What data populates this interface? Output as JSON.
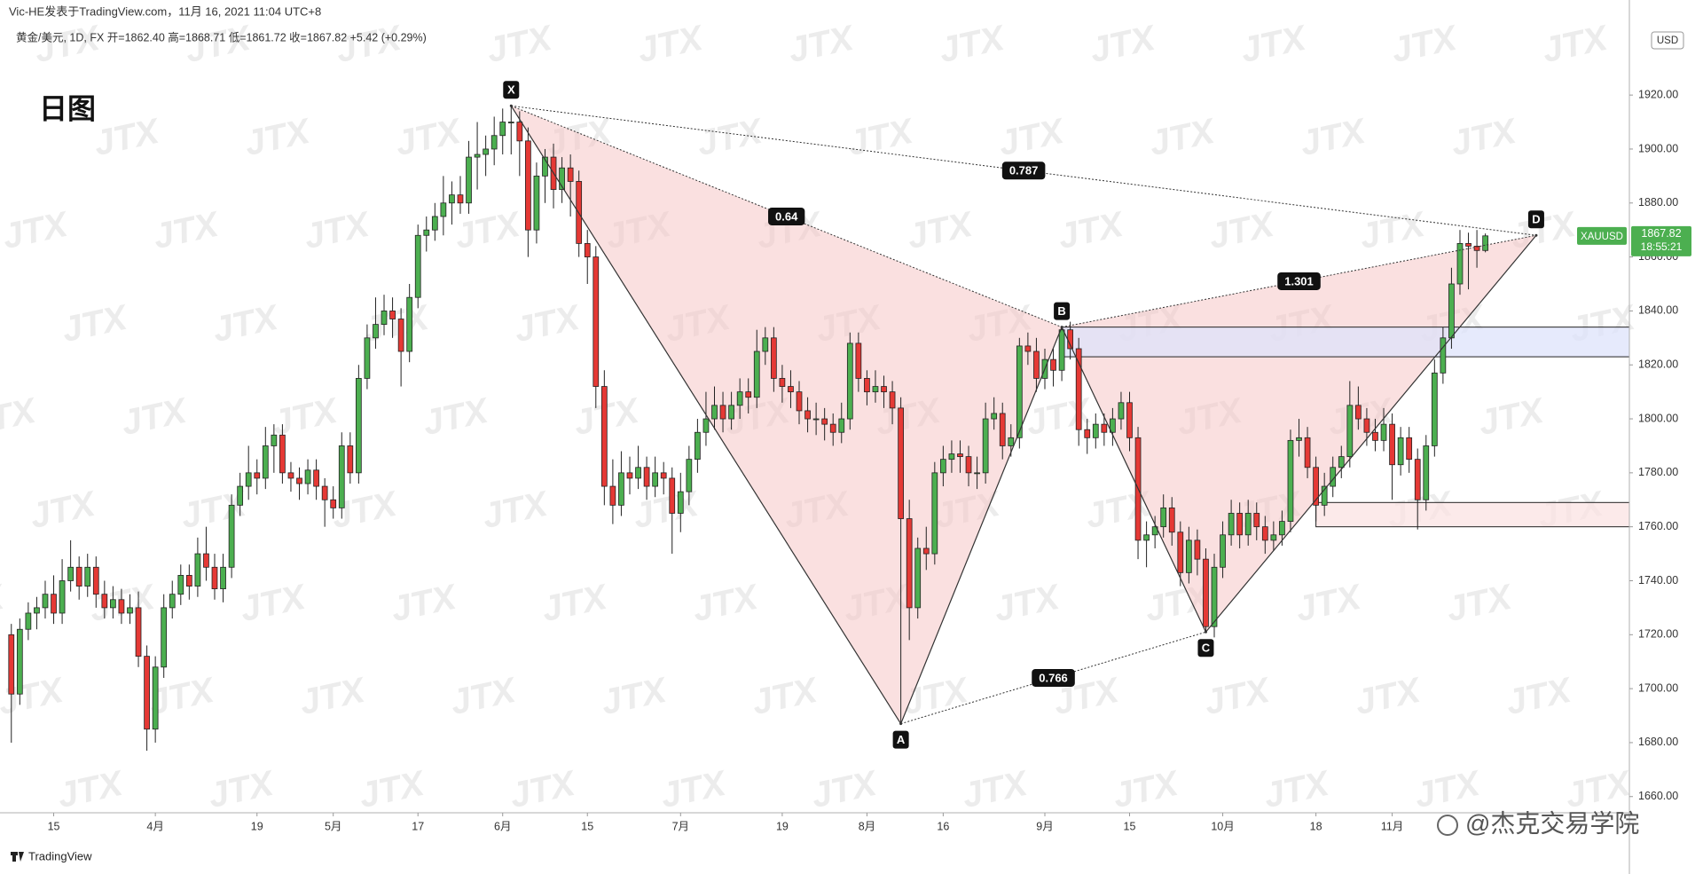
{
  "header": "Vic-HE发表于TradingView.com，11月 16, 2021 11:04 UTC+8",
  "footer": "TradingView",
  "author_watermark": "@杰克交易学院",
  "watermark": "JTX",
  "chart_data": {
    "type": "candlestick",
    "title": "日图",
    "legend": "黄金/美元, 1D, FX  开=1862.40  高=1868.71  低=1861.72  收=1867.82  +5.42 (+0.29%)",
    "currency": "USD",
    "symbol": "XAUUSD",
    "countdown": "18:55:21",
    "up_color": "#4caf50",
    "down_color": "#e53935",
    "xlim": [
      -0.5,
      191
    ],
    "ylim": [
      1654,
      1948
    ],
    "yticks": [
      {
        "value": 1660,
        "label": "1660.00"
      },
      {
        "value": 1680,
        "label": "1680.00"
      },
      {
        "value": 1700,
        "label": "1700.00"
      },
      {
        "value": 1720,
        "label": "1720.00"
      },
      {
        "value": 1740,
        "label": "1740.00"
      },
      {
        "value": 1760,
        "label": "1760.00"
      },
      {
        "value": 1780,
        "label": "1780.00"
      },
      {
        "value": 1800,
        "label": "1800.00"
      },
      {
        "value": 1820,
        "label": "1820.00"
      },
      {
        "value": 1840,
        "label": "1840.00"
      },
      {
        "value": 1860,
        "label": "1860.00"
      },
      {
        "value": 1880,
        "label": "1880.00"
      },
      {
        "value": 1900,
        "label": "1900.00"
      },
      {
        "value": 1920,
        "label": "1920.00"
      }
    ],
    "xticks": [
      {
        "value": 5,
        "label": "15"
      },
      {
        "value": 17,
        "label": "4月"
      },
      {
        "value": 29,
        "label": "19"
      },
      {
        "value": 38,
        "label": "5月"
      },
      {
        "value": 48,
        "label": "17"
      },
      {
        "value": 58,
        "label": "6月"
      },
      {
        "value": 68,
        "label": "15"
      },
      {
        "value": 79,
        "label": "7月"
      },
      {
        "value": 91,
        "label": "19"
      },
      {
        "value": 101,
        "label": "8月"
      },
      {
        "value": 110,
        "label": "16"
      },
      {
        "value": 122,
        "label": "9月"
      },
      {
        "value": 132,
        "label": "15"
      },
      {
        "value": 143,
        "label": "10月"
      },
      {
        "value": 154,
        "label": "18"
      },
      {
        "value": 163,
        "label": "11月"
      }
    ],
    "candles": [
      [
        1720,
        1724,
        1680,
        1698
      ],
      [
        1698,
        1726,
        1694,
        1722
      ],
      [
        1722,
        1732,
        1718,
        1728
      ],
      [
        1728,
        1734,
        1722,
        1730
      ],
      [
        1730,
        1740,
        1726,
        1735
      ],
      [
        1735,
        1742,
        1724,
        1728
      ],
      [
        1728,
        1748,
        1724,
        1740
      ],
      [
        1740,
        1755,
        1736,
        1745
      ],
      [
        1745,
        1749,
        1733,
        1738
      ],
      [
        1738,
        1750,
        1734,
        1745
      ],
      [
        1745,
        1749,
        1730,
        1735
      ],
      [
        1735,
        1740,
        1726,
        1730
      ],
      [
        1730,
        1738,
        1726,
        1733
      ],
      [
        1733,
        1737,
        1724,
        1728
      ],
      [
        1728,
        1735,
        1724,
        1730
      ],
      [
        1730,
        1736,
        1708,
        1712
      ],
      [
        1712,
        1716,
        1677,
        1685
      ],
      [
        1685,
        1712,
        1680,
        1708
      ],
      [
        1708,
        1735,
        1704,
        1730
      ],
      [
        1730,
        1740,
        1726,
        1735
      ],
      [
        1735,
        1746,
        1731,
        1742
      ],
      [
        1742,
        1746,
        1733,
        1738
      ],
      [
        1738,
        1756,
        1734,
        1750
      ],
      [
        1750,
        1760,
        1740,
        1745
      ],
      [
        1745,
        1750,
        1733,
        1737
      ],
      [
        1737,
        1750,
        1732,
        1745
      ],
      [
        1745,
        1772,
        1741,
        1768
      ],
      [
        1768,
        1780,
        1764,
        1775
      ],
      [
        1775,
        1790,
        1770,
        1780
      ],
      [
        1780,
        1785,
        1772,
        1778
      ],
      [
        1778,
        1797,
        1774,
        1790
      ],
      [
        1790,
        1798,
        1780,
        1794
      ],
      [
        1794,
        1798,
        1776,
        1780
      ],
      [
        1780,
        1784,
        1773,
        1778
      ],
      [
        1778,
        1782,
        1770,
        1776
      ],
      [
        1776,
        1785,
        1772,
        1781
      ],
      [
        1781,
        1785,
        1770,
        1775
      ],
      [
        1775,
        1778,
        1760,
        1770
      ],
      [
        1770,
        1775,
        1763,
        1767
      ],
      [
        1767,
        1795,
        1763,
        1790
      ],
      [
        1790,
        1795,
        1776,
        1780
      ],
      [
        1780,
        1820,
        1776,
        1815
      ],
      [
        1815,
        1835,
        1811,
        1830
      ],
      [
        1830,
        1845,
        1826,
        1835
      ],
      [
        1835,
        1846,
        1831,
        1840
      ],
      [
        1840,
        1845,
        1830,
        1837
      ],
      [
        1837,
        1841,
        1812,
        1825
      ],
      [
        1825,
        1850,
        1821,
        1845
      ],
      [
        1845,
        1872,
        1841,
        1868
      ],
      [
        1868,
        1875,
        1862,
        1870
      ],
      [
        1870,
        1880,
        1866,
        1875
      ],
      [
        1875,
        1890,
        1868,
        1880
      ],
      [
        1880,
        1888,
        1872,
        1883
      ],
      [
        1883,
        1890,
        1876,
        1880
      ],
      [
        1880,
        1903,
        1876,
        1897
      ],
      [
        1897,
        1910,
        1885,
        1898
      ],
      [
        1898,
        1905,
        1890,
        1900
      ],
      [
        1900,
        1912,
        1894,
        1905
      ],
      [
        1905,
        1915,
        1898,
        1910
      ],
      [
        1910,
        1916,
        1898,
        1910
      ],
      [
        1910,
        1914,
        1890,
        1903
      ],
      [
        1903,
        1908,
        1860,
        1870
      ],
      [
        1870,
        1895,
        1865,
        1890
      ],
      [
        1890,
        1900,
        1880,
        1897
      ],
      [
        1897,
        1902,
        1878,
        1885
      ],
      [
        1885,
        1897,
        1880,
        1893
      ],
      [
        1893,
        1898,
        1875,
        1888
      ],
      [
        1888,
        1892,
        1860,
        1865
      ],
      [
        1865,
        1870,
        1850,
        1860
      ],
      [
        1860,
        1864,
        1804,
        1812
      ],
      [
        1812,
        1818,
        1768,
        1775
      ],
      [
        1775,
        1785,
        1761,
        1768
      ],
      [
        1768,
        1788,
        1764,
        1780
      ],
      [
        1780,
        1786,
        1772,
        1778
      ],
      [
        1778,
        1790,
        1774,
        1782
      ],
      [
        1782,
        1786,
        1770,
        1775
      ],
      [
        1775,
        1786,
        1771,
        1780
      ],
      [
        1780,
        1784,
        1772,
        1778
      ],
      [
        1778,
        1782,
        1750,
        1765
      ],
      [
        1765,
        1780,
        1758,
        1773
      ],
      [
        1773,
        1790,
        1768,
        1785
      ],
      [
        1785,
        1800,
        1780,
        1795
      ],
      [
        1795,
        1810,
        1790,
        1800
      ],
      [
        1800,
        1812,
        1796,
        1805
      ],
      [
        1805,
        1810,
        1795,
        1800
      ],
      [
        1800,
        1810,
        1796,
        1805
      ],
      [
        1805,
        1815,
        1800,
        1810
      ],
      [
        1810,
        1815,
        1802,
        1808
      ],
      [
        1808,
        1833,
        1804,
        1825
      ],
      [
        1825,
        1834,
        1820,
        1830
      ],
      [
        1830,
        1834,
        1810,
        1815
      ],
      [
        1815,
        1820,
        1806,
        1812
      ],
      [
        1812,
        1818,
        1804,
        1810
      ],
      [
        1810,
        1814,
        1798,
        1803
      ],
      [
        1803,
        1808,
        1795,
        1800
      ],
      [
        1800,
        1806,
        1794,
        1800
      ],
      [
        1800,
        1804,
        1792,
        1798
      ],
      [
        1798,
        1802,
        1790,
        1795
      ],
      [
        1795,
        1806,
        1791,
        1800
      ],
      [
        1800,
        1832,
        1796,
        1828
      ],
      [
        1828,
        1832,
        1810,
        1815
      ],
      [
        1815,
        1818,
        1805,
        1810
      ],
      [
        1810,
        1818,
        1806,
        1812
      ],
      [
        1812,
        1816,
        1804,
        1810
      ],
      [
        1810,
        1814,
        1798,
        1804
      ],
      [
        1804,
        1808,
        1687,
        1763
      ],
      [
        1763,
        1770,
        1718,
        1730
      ],
      [
        1730,
        1756,
        1726,
        1752
      ],
      [
        1752,
        1760,
        1744,
        1750
      ],
      [
        1750,
        1784,
        1746,
        1780
      ],
      [
        1780,
        1790,
        1775,
        1785
      ],
      [
        1785,
        1792,
        1780,
        1787
      ],
      [
        1787,
        1792,
        1780,
        1786
      ],
      [
        1786,
        1790,
        1775,
        1780
      ],
      [
        1780,
        1786,
        1774,
        1780
      ],
      [
        1780,
        1806,
        1776,
        1800
      ],
      [
        1800,
        1808,
        1796,
        1802
      ],
      [
        1802,
        1806,
        1785,
        1790
      ],
      [
        1790,
        1798,
        1786,
        1793
      ],
      [
        1793,
        1830,
        1789,
        1827
      ],
      [
        1827,
        1832,
        1820,
        1825
      ],
      [
        1825,
        1830,
        1810,
        1815
      ],
      [
        1815,
        1826,
        1811,
        1822
      ],
      [
        1822,
        1826,
        1812,
        1818
      ],
      [
        1818,
        1834,
        1814,
        1833
      ],
      [
        1833,
        1836,
        1822,
        1826
      ],
      [
        1826,
        1830,
        1790,
        1796
      ],
      [
        1796,
        1800,
        1787,
        1793
      ],
      [
        1793,
        1802,
        1789,
        1798
      ],
      [
        1798,
        1802,
        1790,
        1795
      ],
      [
        1795,
        1804,
        1790,
        1800
      ],
      [
        1800,
        1810,
        1796,
        1806
      ],
      [
        1806,
        1810,
        1788,
        1793
      ],
      [
        1793,
        1797,
        1748,
        1755
      ],
      [
        1755,
        1762,
        1745,
        1757
      ],
      [
        1757,
        1764,
        1752,
        1760
      ],
      [
        1760,
        1772,
        1756,
        1767
      ],
      [
        1767,
        1771,
        1753,
        1758
      ],
      [
        1758,
        1762,
        1738,
        1743
      ],
      [
        1743,
        1760,
        1739,
        1755
      ],
      [
        1755,
        1759,
        1742,
        1748
      ],
      [
        1748,
        1752,
        1721,
        1723
      ],
      [
        1723,
        1750,
        1719,
        1745
      ],
      [
        1745,
        1762,
        1741,
        1757
      ],
      [
        1757,
        1770,
        1753,
        1765
      ],
      [
        1765,
        1769,
        1752,
        1757
      ],
      [
        1757,
        1770,
        1753,
        1765
      ],
      [
        1765,
        1769,
        1755,
        1760
      ],
      [
        1760,
        1764,
        1750,
        1755
      ],
      [
        1755,
        1762,
        1751,
        1757
      ],
      [
        1757,
        1766,
        1753,
        1762
      ],
      [
        1762,
        1796,
        1758,
        1792
      ],
      [
        1792,
        1800,
        1786,
        1793
      ],
      [
        1793,
        1797,
        1778,
        1782
      ],
      [
        1782,
        1786,
        1762,
        1768
      ],
      [
        1768,
        1780,
        1764,
        1775
      ],
      [
        1775,
        1786,
        1771,
        1782
      ],
      [
        1782,
        1790,
        1778,
        1786
      ],
      [
        1786,
        1814,
        1782,
        1805
      ],
      [
        1805,
        1812,
        1796,
        1800
      ],
      [
        1800,
        1804,
        1790,
        1795
      ],
      [
        1795,
        1800,
        1788,
        1792
      ],
      [
        1792,
        1804,
        1788,
        1798
      ],
      [
        1798,
        1802,
        1770,
        1783
      ],
      [
        1783,
        1797,
        1779,
        1793
      ],
      [
        1793,
        1797,
        1780,
        1785
      ],
      [
        1785,
        1789,
        1759,
        1770
      ],
      [
        1770,
        1794,
        1766,
        1790
      ],
      [
        1790,
        1822,
        1786,
        1817
      ],
      [
        1817,
        1834,
        1813,
        1830
      ],
      [
        1830,
        1856,
        1826,
        1850
      ],
      [
        1850,
        1870,
        1846,
        1865
      ],
      [
        1865,
        1869,
        1848,
        1864
      ],
      [
        1864,
        1870,
        1856,
        1862.4
      ],
      [
        1862.4,
        1868.71,
        1861.72,
        1867.82
      ]
    ],
    "pattern": {
      "points": [
        {
          "label": "X",
          "index": 59,
          "price": 1916
        },
        {
          "label": "A",
          "index": 105,
          "price": 1687
        },
        {
          "label": "B",
          "index": 124,
          "price": 1834
        },
        {
          "label": "C",
          "index": 141,
          "price": 1721
        },
        {
          "label": "D",
          "index": 180,
          "price": 1868
        }
      ],
      "ratios": [
        0.64,
        0.787,
        1.301,
        0.766
      ],
      "fill": "#f5c6c6"
    },
    "zones": [
      {
        "start": 124,
        "top": 1834,
        "bottom": 1823,
        "color": "#dde3fb"
      },
      {
        "start": 154,
        "top": 1769,
        "bottom": 1760,
        "color": "#fbe3e3"
      }
    ]
  }
}
